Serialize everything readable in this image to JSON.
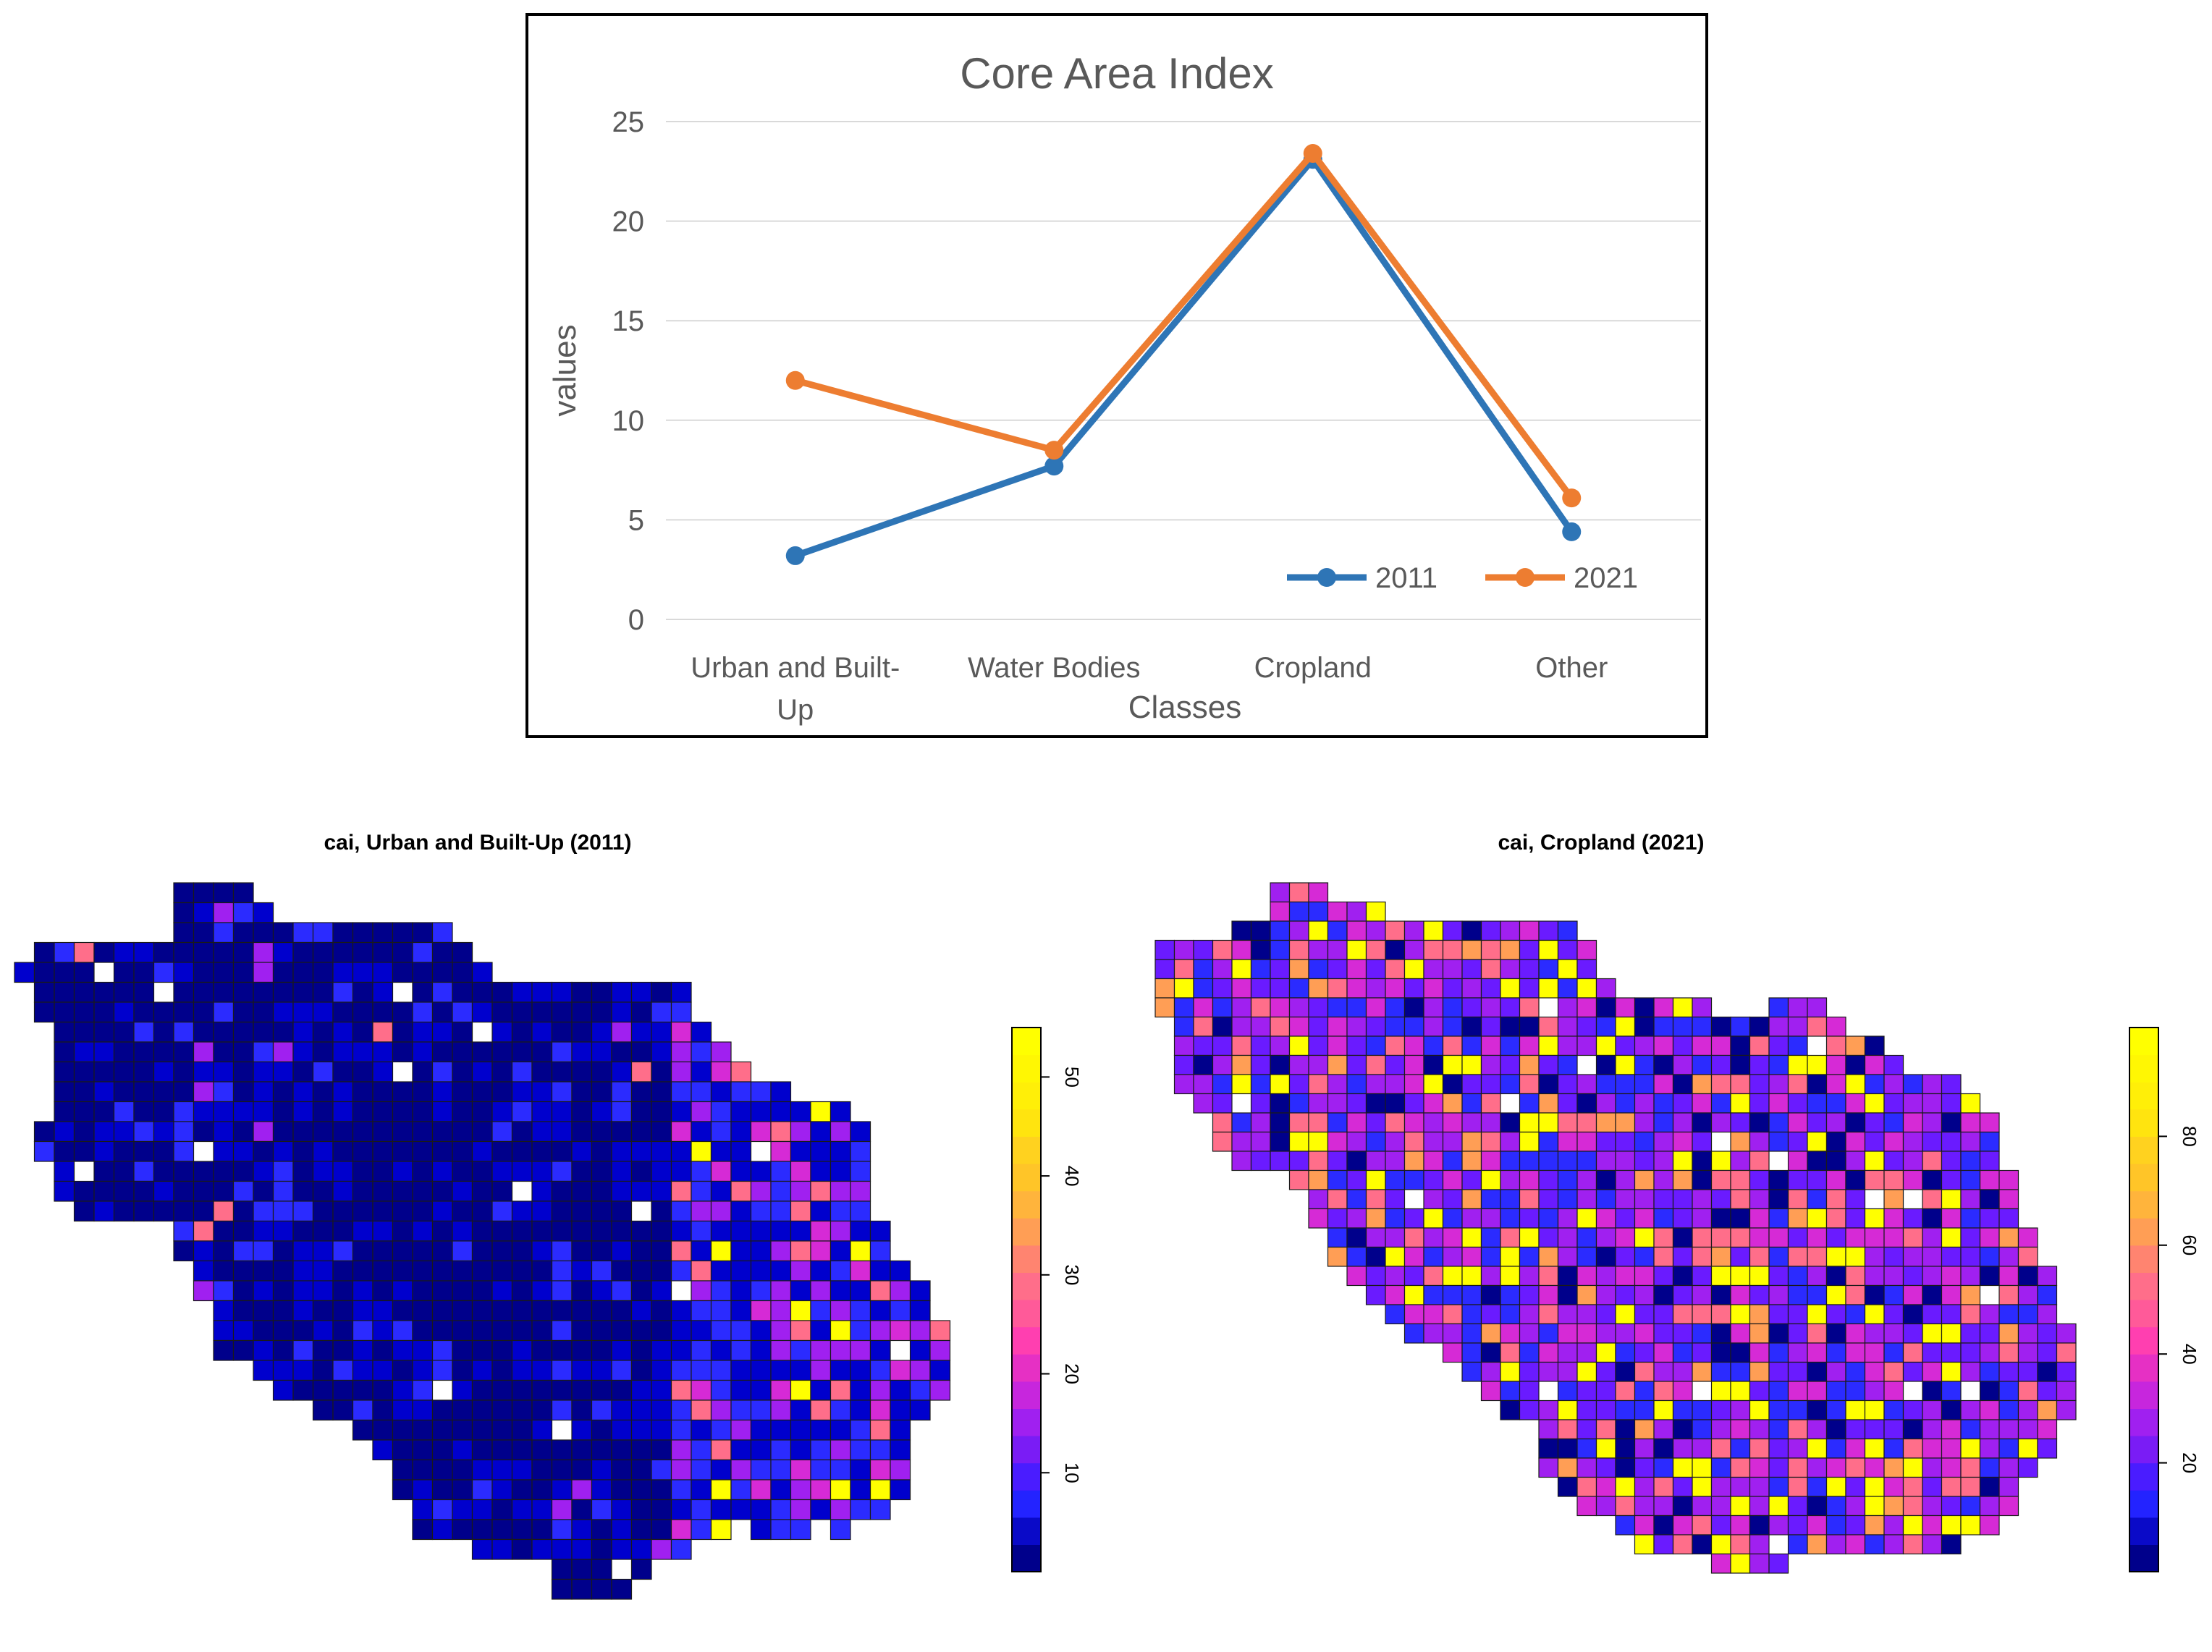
{
  "chart_data": [
    {
      "type": "line",
      "title": "Core Area Index",
      "xlabel": "Classes",
      "ylabel": "values",
      "categories": [
        "Urban and Built-Up",
        "Water Bodies",
        "Cropland",
        "Other"
      ],
      "category_lines": [
        [
          "Urban and Built-",
          "Up"
        ],
        [
          "Water Bodies"
        ],
        [
          "Cropland"
        ],
        [
          "Other"
        ]
      ],
      "yticks": [
        0,
        5,
        10,
        15,
        20,
        25
      ],
      "ylim": [
        0,
        25
      ],
      "grid": true,
      "legend_position": "bottom-right",
      "series": [
        {
          "name": "2011",
          "values": [
            3.2,
            7.7,
            23.1,
            4.4
          ],
          "color": "#2E75B6"
        },
        {
          "name": "2021",
          "values": [
            12.0,
            8.5,
            23.4,
            6.1
          ],
          "color": "#ED7D31"
        }
      ]
    },
    {
      "type": "heatmap",
      "title": "cai, Urban and Built-Up (2011)",
      "colorbar_ticks": [
        10,
        20,
        30,
        40,
        50
      ],
      "colorbar_range": [
        0,
        55
      ],
      "palette": "blue-magenta-yellow"
    },
    {
      "type": "heatmap",
      "title": "cai, Cropland (2021)",
      "colorbar_ticks": [
        20,
        40,
        60,
        80
      ],
      "colorbar_range": [
        0,
        100
      ],
      "palette": "blue-magenta-yellow"
    }
  ],
  "colors": {
    "palette": [
      "#00008B",
      "#0000CD",
      "#2B2BFF",
      "#6A1BFF",
      "#A020F0",
      "#D62AD6",
      "#FF3FB0",
      "#FF6E8A",
      "#FF9E55",
      "#FFD21F",
      "#FFFF00"
    ]
  }
}
